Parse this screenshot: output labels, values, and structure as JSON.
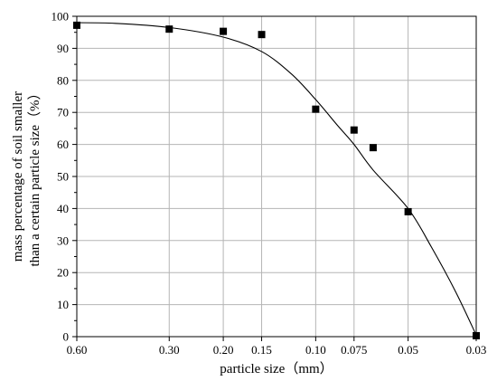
{
  "chart_data": {
    "type": "scatter",
    "xlabel": "particle size（mm）",
    "ylabel_lines": [
      "mass percentage of soil smaller",
      "than a certain particle size（%）"
    ],
    "x_scale": "log",
    "x_reversed": true,
    "xlim": [
      0.6,
      0.03
    ],
    "ylim": [
      0,
      100
    ],
    "grid": true,
    "x_ticks": [
      {
        "value": 0.6,
        "label": "0.60"
      },
      {
        "value": 0.3,
        "label": "0.30"
      },
      {
        "value": 0.2,
        "label": "0.20"
      },
      {
        "value": 0.15,
        "label": "0.15"
      },
      {
        "value": 0.1,
        "label": "0.10"
      },
      {
        "value": 0.075,
        "label": "0.075"
      },
      {
        "value": 0.05,
        "label": "0.05"
      },
      {
        "value": 0.03,
        "label": "0.03"
      }
    ],
    "y_ticks": [
      0,
      10,
      20,
      30,
      40,
      50,
      60,
      70,
      80,
      90,
      100
    ],
    "points": [
      {
        "x": 0.6,
        "y": 97.2
      },
      {
        "x": 0.3,
        "y": 96.0
      },
      {
        "x": 0.2,
        "y": 95.3
      },
      {
        "x": 0.15,
        "y": 94.3
      },
      {
        "x": 0.1,
        "y": 71.0
      },
      {
        "x": 0.075,
        "y": 64.5
      },
      {
        "x": 0.065,
        "y": 59.0
      },
      {
        "x": 0.05,
        "y": 39.0
      },
      {
        "x": 0.03,
        "y": 0.3
      }
    ],
    "curve": [
      {
        "x": 0.6,
        "y": 98.0
      },
      {
        "x": 0.45,
        "y": 97.8
      },
      {
        "x": 0.3,
        "y": 96.5
      },
      {
        "x": 0.2,
        "y": 93.5
      },
      {
        "x": 0.15,
        "y": 89.0
      },
      {
        "x": 0.12,
        "y": 82.0
      },
      {
        "x": 0.1,
        "y": 74.0
      },
      {
        "x": 0.085,
        "y": 66.0
      },
      {
        "x": 0.075,
        "y": 60.0
      },
      {
        "x": 0.065,
        "y": 52.0
      },
      {
        "x": 0.05,
        "y": 40.0
      },
      {
        "x": 0.042,
        "y": 28.0
      },
      {
        "x": 0.035,
        "y": 14.0
      },
      {
        "x": 0.03,
        "y": 0.5
      }
    ],
    "series": [
      {
        "type": "scatter",
        "marker": "square",
        "color": "#000000"
      },
      {
        "type": "line",
        "color": "#000000"
      }
    ]
  }
}
